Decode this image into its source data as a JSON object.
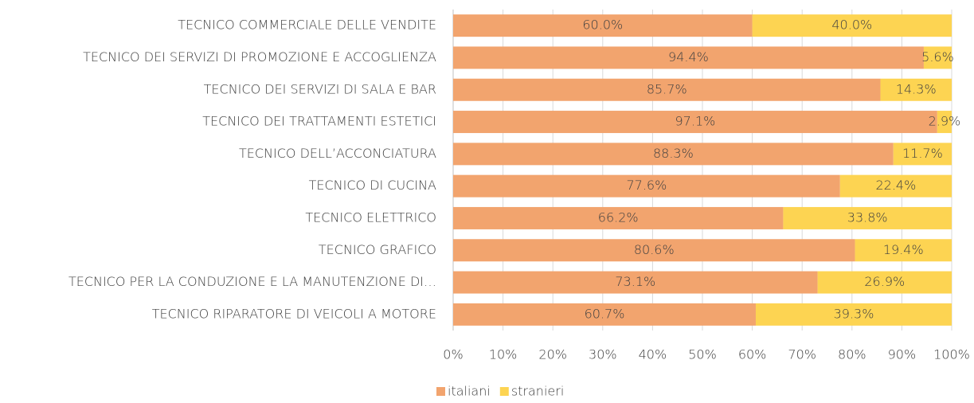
{
  "chart_data": {
    "type": "bar",
    "orientation": "horizontal",
    "stacked": true,
    "categories": [
      "TECNICO COMMERCIALE DELLE VENDITE",
      "TECNICO DEI SERVIZI DI PROMOZIONE E ACCOGLIENZA",
      "TECNICO DEI SERVIZI DI SALA E BAR",
      "TECNICO DEI TRATTAMENTI ESTETICI",
      "TECNICO DELL’ACCONCIATURA",
      "TECNICO DI CUCINA",
      "TECNICO ELETTRICO",
      "TECNICO GRAFICO",
      "TECNICO PER LA CONDUZIONE E LA MANUTENZIONE DI…",
      "TECNICO RIPARATORE DI VEICOLI A MOTORE"
    ],
    "series": [
      {
        "name": "italiani",
        "color": "#f2a46e",
        "values": [
          60.0,
          94.4,
          85.7,
          97.1,
          88.3,
          77.6,
          66.2,
          80.6,
          73.1,
          60.7
        ],
        "value_labels": [
          "60.0%",
          "94.4%",
          "85.7%",
          "97.1%",
          "88.3%",
          "77.6%",
          "66.2%",
          "80.6%",
          "73.1%",
          "60.7%"
        ]
      },
      {
        "name": "stranieri",
        "color": "#fdd452",
        "values": [
          40.0,
          5.6,
          14.3,
          2.9,
          11.7,
          22.4,
          33.8,
          19.4,
          26.9,
          39.3
        ],
        "value_labels": [
          "40.0%",
          "5.6%",
          "14.3%",
          "2.9%",
          "11.7%",
          "22.4%",
          "33.8%",
          "19.4%",
          "26.9%",
          "39.3%"
        ]
      }
    ],
    "xlim": [
      0,
      100
    ],
    "xticks": [
      {
        "value": 0,
        "label": "0%"
      },
      {
        "value": 10,
        "label": "10%"
      },
      {
        "value": 20,
        "label": "20%"
      },
      {
        "value": 30,
        "label": "30%"
      },
      {
        "value": 40,
        "label": "40%"
      },
      {
        "value": 50,
        "label": "50%"
      },
      {
        "value": 60,
        "label": "60%"
      },
      {
        "value": 70,
        "label": "70%"
      },
      {
        "value": 80,
        "label": "80%"
      },
      {
        "value": 90,
        "label": "90%"
      },
      {
        "value": 100,
        "label": "100%"
      }
    ],
    "grid": true,
    "legend": "bottom"
  }
}
